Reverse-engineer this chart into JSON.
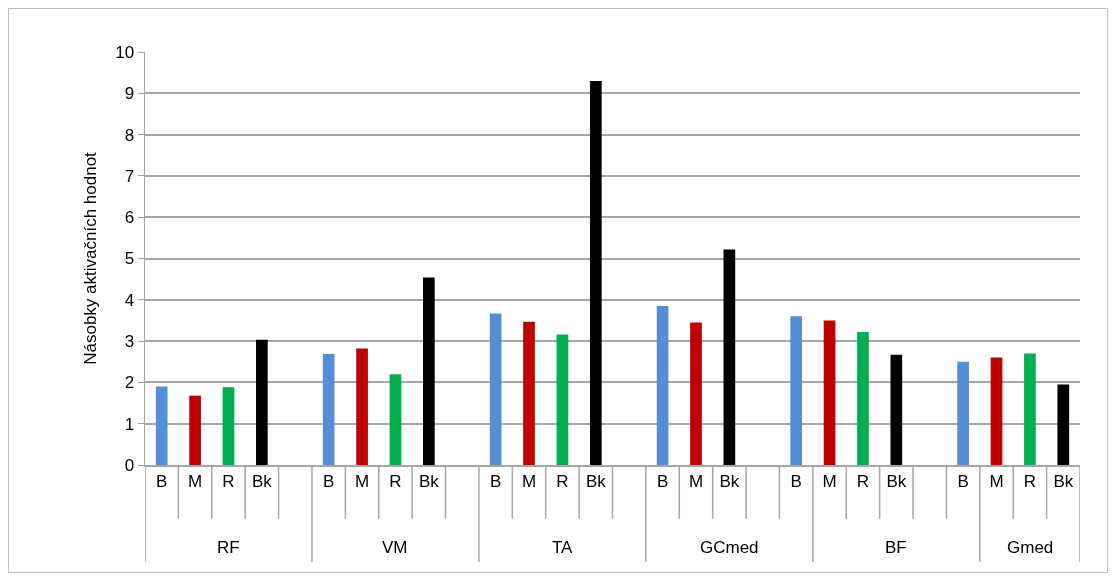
{
  "chart_data": {
    "type": "bar",
    "ylabel": "Násobky aktivačních hodnot",
    "categories": [
      "B",
      "M",
      "R",
      "Bk",
      null,
      "B",
      "M",
      "R",
      "Bk",
      null,
      "B",
      "M",
      "R",
      "Bk",
      null,
      "B",
      "M",
      "Bk",
      null,
      "B",
      "M",
      "R",
      "Bk",
      null,
      "B",
      "M",
      "R",
      "Bk"
    ],
    "values": [
      1.9,
      1.68,
      1.88,
      3.03,
      null,
      2.69,
      2.82,
      2.2,
      4.54,
      null,
      3.67,
      3.47,
      3.16,
      9.3,
      null,
      3.85,
      3.45,
      5.22,
      null,
      3.6,
      3.5,
      3.22,
      2.67,
      null,
      2.5,
      2.6,
      2.7,
      1.95
    ],
    "colors": [
      "#558ed5",
      "#c00000",
      "#00b050",
      "#000000",
      null,
      "#558ed5",
      "#c00000",
      "#00b050",
      "#000000",
      null,
      "#558ed5",
      "#c00000",
      "#00b050",
      "#000000",
      null,
      "#558ed5",
      "#c00000",
      "#000000",
      null,
      "#558ed5",
      "#c00000",
      "#00b050",
      "#000000",
      null,
      "#558ed5",
      "#c00000",
      "#00b050",
      "#000000"
    ],
    "annotations": [
      "RF",
      "VM",
      "TA",
      "GCmed",
      "BF",
      "Gmed"
    ],
    "ylim": [
      0,
      10
    ],
    "yticks": [
      0,
      1,
      2,
      3,
      4,
      5,
      6,
      7,
      8,
      9,
      10
    ],
    "grid": true
  }
}
